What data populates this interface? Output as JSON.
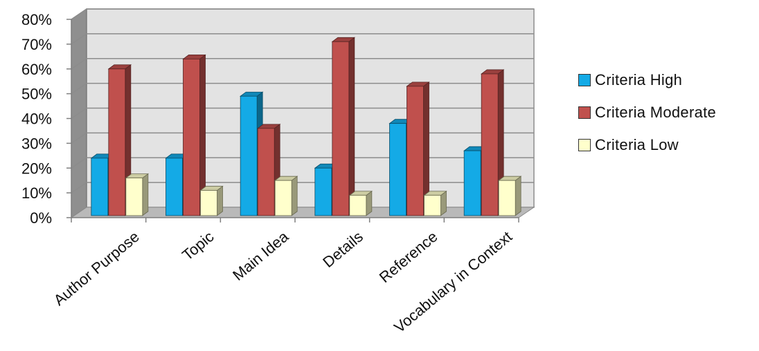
{
  "chart_data": {
    "type": "bar",
    "categories": [
      "Author Purpose",
      "Topic",
      "Main Idea",
      "Details",
      "Reference",
      "Vocabulary in Context"
    ],
    "series": [
      {
        "name": "Criteria High",
        "values": [
          24,
          24,
          49,
          20,
          38,
          27
        ],
        "color": "#14aae6"
      },
      {
        "name": "Criteria Moderate",
        "values": [
          60,
          64,
          36,
          71,
          53,
          58
        ],
        "color": "#c0504d"
      },
      {
        "name": "Criteria Low",
        "values": [
          16,
          11,
          15,
          9,
          9,
          15
        ],
        "color": "#ffffcc"
      }
    ],
    "y_ticks": [
      "0%",
      "10%",
      "20%",
      "30%",
      "40%",
      "50%",
      "60%",
      "70%",
      "80%"
    ],
    "ylim": [
      0,
      80
    ],
    "y_unit": "%",
    "grid": true,
    "style": "3d-clustered-column",
    "legend_position": "right"
  }
}
